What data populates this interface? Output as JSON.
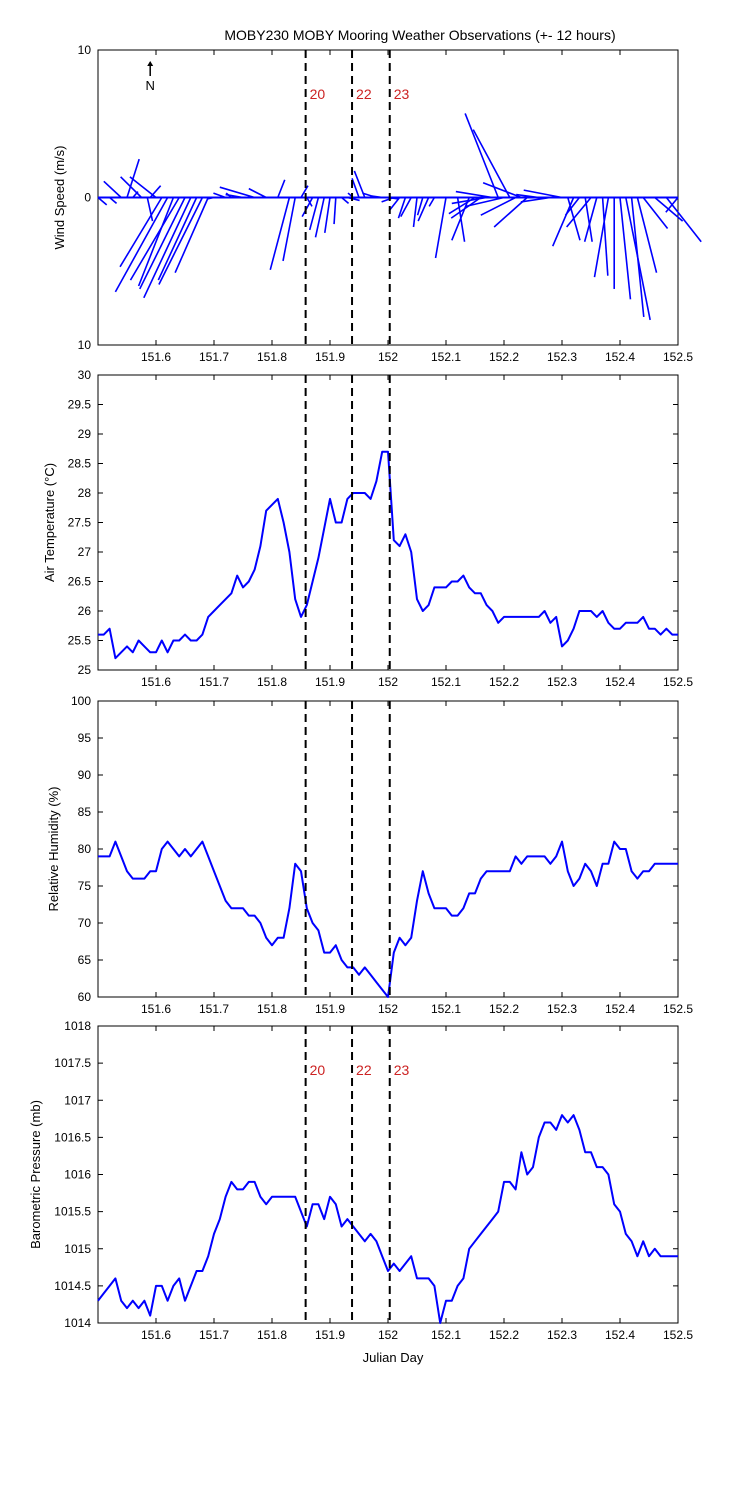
{
  "title": "MOBY230 MOBY Mooring Weather Observations (+- 12 hours)",
  "colors": {
    "series": "#0000ff",
    "marker_label": "#cc2222",
    "axis": "#000000",
    "background": "#ffffff"
  },
  "north_label": "N",
  "x_ticks": [
    151.6,
    151.7,
    151.8,
    151.9,
    152,
    152.1,
    152.2,
    152.3,
    152.4,
    152.5
  ],
  "x_tick_labels": [
    "151.6",
    "151.7",
    "151.8",
    "151.9",
    "152",
    "152.1",
    "152.2",
    "152.3",
    "152.4",
    "152.5"
  ],
  "xlabel": "Julian Day",
  "markers": [
    {
      "x": 151.858,
      "label": "20"
    },
    {
      "x": 151.938,
      "label": "22"
    },
    {
      "x": 152.003,
      "label": "23"
    }
  ],
  "chart_data": [
    {
      "type": "vector",
      "name": "wind",
      "ylabel": "Wind Speed (m/s)",
      "xlim": [
        151.5,
        152.5
      ],
      "ylim": [
        -10,
        10
      ],
      "ytick_values": [
        10,
        0,
        -10
      ],
      "ytick_labels": [
        "10",
        "0",
        "10"
      ],
      "show_marker_labels": true,
      "x": [
        151.5,
        151.52,
        151.54,
        151.55,
        151.56,
        151.575,
        151.585,
        151.59,
        151.6,
        151.61,
        151.62,
        151.63,
        151.64,
        151.65,
        151.66,
        151.67,
        151.68,
        151.69,
        151.7,
        151.72,
        151.73,
        151.75,
        151.77,
        151.79,
        151.81,
        151.83,
        151.84,
        151.85,
        151.86,
        151.87,
        151.88,
        151.89,
        151.9,
        151.91,
        151.92,
        151.93,
        151.94,
        151.95,
        151.96,
        151.98,
        151.99,
        152.0,
        152.01,
        152.02,
        152.03,
        152.04,
        152.05,
        152.06,
        152.07,
        152.08,
        152.1,
        152.12,
        152.14,
        152.15,
        152.16,
        152.17,
        152.18,
        152.19,
        152.2,
        152.21,
        152.22,
        152.23,
        152.24,
        152.26,
        152.28,
        152.3,
        152.31,
        152.32,
        152.33,
        152.34,
        152.35,
        152.36,
        152.37,
        152.38,
        152.39,
        152.4,
        152.41,
        152.42,
        152.43,
        152.44,
        152.46,
        152.48,
        152.5
      ],
      "u": [
        0.5,
        0.4,
        -1.0,
        0.7,
        0.3,
        -1.2,
        0.3,
        0.6,
        -1.5,
        -2.4,
        -3.0,
        -2.0,
        -2.8,
        -2.6,
        -2.7,
        -2.2,
        -2.5,
        -1.9,
        -0.4,
        -0.7,
        -0.3,
        -1.0,
        -2.0,
        -1.0,
        0.4,
        -1.1,
        -0.7,
        0.4,
        0.3,
        -0.6,
        -0.5,
        -0.5,
        -0.3,
        -0.1,
        0.4,
        0.7,
        -0.3,
        -0.4,
        -0.6,
        -0.8,
        -0.6,
        0.6,
        -0.7,
        -0.6,
        -0.4,
        -0.6,
        -0.2,
        -0.3,
        -0.6,
        -0.3,
        -0.6,
        0.4,
        -1.0,
        -1.5,
        -1.7,
        -2.0,
        -2.1,
        -1.9,
        -2.2,
        -2.1,
        -2.0,
        -2.2,
        -1.9,
        -1.3,
        -1.7,
        -2.2,
        0.7,
        -1.2,
        -0.8,
        0.4,
        -1.4,
        -0.7,
        0.3,
        -0.8,
        0.0,
        0.6,
        1.4,
        0.7,
        1.1,
        1.4,
        1.6,
        2.0,
        -0.7
      ],
      "v": [
        -0.5,
        -0.4,
        1.1,
        2.6,
        0.4,
        1.4,
        -1.6,
        0.8,
        1.4,
        -4.7,
        -6.4,
        -6.0,
        -5.6,
        -6.2,
        -6.8,
        -5.6,
        -5.9,
        -5.1,
        -0.1,
        0.3,
        0.3,
        0.2,
        0.7,
        0.6,
        1.2,
        -4.9,
        -4.3,
        0.8,
        -0.6,
        -1.3,
        -2.2,
        -2.7,
        -2.4,
        -1.8,
        -0.4,
        -0.2,
        0.3,
        1.3,
        1.8,
        0.3,
        0.1,
        -0.1,
        -0.3,
        -0.9,
        -1.4,
        -1.3,
        -2.0,
        -1.2,
        -1.6,
        -0.6,
        -4.1,
        -3.0,
        -2.9,
        -1.1,
        -1.4,
        -0.4,
        0.4,
        5.7,
        -0.6,
        4.6,
        -1.2,
        1.0,
        -2.0,
        0.2,
        -0.3,
        0.5,
        -2.9,
        -3.3,
        -1.2,
        -3.0,
        -2.0,
        -3.0,
        -5.3,
        -5.4,
        -6.2,
        -6.9,
        -8.3,
        -8.1,
        -5.1,
        -2.1,
        -1.6,
        -3.0,
        -1.0
      ]
    },
    {
      "type": "line",
      "name": "air_temperature",
      "ylabel": "Air Temperature (°C)",
      "xlim": [
        151.5,
        152.5
      ],
      "ylim": [
        25,
        30
      ],
      "ytick_values": [
        25,
        25.5,
        26,
        26.5,
        27,
        27.5,
        28,
        28.5,
        29,
        29.5,
        30
      ],
      "ytick_labels": [
        "25",
        "25.5",
        "26",
        "26.5",
        "27",
        "27.5",
        "28",
        "28.5",
        "29",
        "29.5",
        "30"
      ],
      "show_marker_labels": false,
      "x": [
        151.5,
        151.51,
        151.52,
        151.53,
        151.54,
        151.55,
        151.56,
        151.57,
        151.58,
        151.59,
        151.6,
        151.61,
        151.62,
        151.63,
        151.64,
        151.65,
        151.66,
        151.67,
        151.68,
        151.69,
        151.7,
        151.71,
        151.72,
        151.73,
        151.74,
        151.75,
        151.76,
        151.77,
        151.78,
        151.79,
        151.8,
        151.81,
        151.82,
        151.83,
        151.84,
        151.85,
        151.86,
        151.87,
        151.88,
        151.89,
        151.9,
        151.91,
        151.92,
        151.93,
        151.94,
        151.95,
        151.96,
        151.97,
        151.98,
        151.99,
        152.0,
        152.01,
        152.02,
        152.03,
        152.04,
        152.05,
        152.06,
        152.07,
        152.08,
        152.09,
        152.1,
        152.11,
        152.12,
        152.13,
        152.14,
        152.15,
        152.16,
        152.17,
        152.18,
        152.19,
        152.2,
        152.21,
        152.22,
        152.23,
        152.24,
        152.25,
        152.26,
        152.27,
        152.28,
        152.29,
        152.3,
        152.31,
        152.32,
        152.33,
        152.34,
        152.35,
        152.36,
        152.37,
        152.38,
        152.39,
        152.4,
        152.41,
        152.42,
        152.43,
        152.44,
        152.45,
        152.46,
        152.47,
        152.48,
        152.49,
        152.5
      ],
      "y": [
        25.6,
        25.6,
        25.7,
        25.2,
        25.3,
        25.4,
        25.3,
        25.5,
        25.4,
        25.3,
        25.3,
        25.5,
        25.3,
        25.5,
        25.5,
        25.6,
        25.5,
        25.5,
        25.6,
        25.9,
        26.0,
        26.1,
        26.2,
        26.3,
        26.6,
        26.4,
        26.5,
        26.7,
        27.1,
        27.7,
        27.8,
        27.9,
        27.5,
        27.0,
        26.2,
        25.9,
        26.1,
        26.5,
        26.9,
        27.4,
        27.9,
        27.5,
        27.5,
        27.9,
        28.0,
        28.0,
        28.0,
        27.9,
        28.2,
        28.7,
        28.7,
        27.2,
        27.1,
        27.3,
        27.0,
        26.2,
        26.0,
        26.1,
        26.4,
        26.4,
        26.4,
        26.5,
        26.5,
        26.6,
        26.4,
        26.3,
        26.3,
        26.1,
        26.0,
        25.8,
        25.9,
        25.9,
        25.9,
        25.9,
        25.9,
        25.9,
        25.9,
        26.0,
        25.8,
        25.9,
        25.4,
        25.5,
        25.7,
        26.0,
        26.0,
        26.0,
        25.9,
        26.0,
        25.8,
        25.7,
        25.7,
        25.8,
        25.8,
        25.8,
        25.9,
        25.7,
        25.7,
        25.6,
        25.7,
        25.6,
        25.6
      ]
    },
    {
      "type": "line",
      "name": "relative_humidity",
      "ylabel": "Relative Humidity (%)",
      "xlim": [
        151.5,
        152.5
      ],
      "ylim": [
        60,
        100
      ],
      "ytick_values": [
        60,
        65,
        70,
        75,
        80,
        85,
        90,
        95,
        100
      ],
      "ytick_labels": [
        "60",
        "65",
        "70",
        "75",
        "80",
        "85",
        "90",
        "95",
        "100"
      ],
      "show_marker_labels": false,
      "x": [
        151.5,
        151.51,
        151.52,
        151.53,
        151.54,
        151.55,
        151.56,
        151.57,
        151.58,
        151.59,
        151.6,
        151.61,
        151.62,
        151.63,
        151.64,
        151.65,
        151.66,
        151.67,
        151.68,
        151.69,
        151.7,
        151.71,
        151.72,
        151.73,
        151.74,
        151.75,
        151.76,
        151.77,
        151.78,
        151.79,
        151.8,
        151.81,
        151.82,
        151.83,
        151.84,
        151.85,
        151.86,
        151.87,
        151.88,
        151.89,
        151.9,
        151.91,
        151.92,
        151.93,
        151.94,
        151.95,
        151.96,
        151.97,
        151.98,
        151.99,
        152.0,
        152.01,
        152.02,
        152.03,
        152.04,
        152.05,
        152.06,
        152.07,
        152.08,
        152.09,
        152.1,
        152.11,
        152.12,
        152.13,
        152.14,
        152.15,
        152.16,
        152.17,
        152.18,
        152.19,
        152.2,
        152.21,
        152.22,
        152.23,
        152.24,
        152.25,
        152.26,
        152.27,
        152.28,
        152.29,
        152.3,
        152.31,
        152.32,
        152.33,
        152.34,
        152.35,
        152.36,
        152.37,
        152.38,
        152.39,
        152.4,
        152.41,
        152.42,
        152.43,
        152.44,
        152.45,
        152.46,
        152.47,
        152.48,
        152.49,
        152.5
      ],
      "y": [
        79,
        79,
        79,
        81,
        79,
        77,
        76,
        76,
        76,
        77,
        77,
        80,
        81,
        80,
        79,
        80,
        79,
        80,
        81,
        79,
        77,
        75,
        73,
        72,
        72,
        72,
        71,
        71,
        70,
        68,
        67,
        68,
        68,
        72,
        78,
        77,
        72,
        70,
        69,
        66,
        66,
        67,
        65,
        64,
        64,
        63,
        64,
        63,
        62,
        61,
        60,
        66,
        68,
        67,
        68,
        73,
        77,
        74,
        72,
        72,
        72,
        71,
        71,
        72,
        74,
        74,
        76,
        77,
        77,
        77,
        77,
        77,
        79,
        78,
        79,
        79,
        79,
        79,
        78,
        79,
        81,
        77,
        75,
        76,
        78,
        77,
        75,
        78,
        78,
        81,
        80,
        80,
        77,
        76,
        77,
        77,
        78,
        78,
        78,
        78,
        78
      ]
    },
    {
      "type": "line",
      "name": "barometric_pressure",
      "ylabel": "Barometric Pressure (mb)",
      "xlim": [
        151.5,
        152.5
      ],
      "ylim": [
        1014,
        1018
      ],
      "ytick_values": [
        1014,
        1014.5,
        1015,
        1015.5,
        1016,
        1016.5,
        1017,
        1017.5,
        1018
      ],
      "ytick_labels": [
        "1014",
        "1014.5",
        "1015",
        "1015.5",
        "1016",
        "1016.5",
        "1017",
        "1017.5",
        "1018"
      ],
      "show_marker_labels": true,
      "x": [
        151.5,
        151.51,
        151.52,
        151.53,
        151.54,
        151.55,
        151.56,
        151.57,
        151.58,
        151.59,
        151.6,
        151.61,
        151.62,
        151.63,
        151.64,
        151.65,
        151.66,
        151.67,
        151.68,
        151.69,
        151.7,
        151.71,
        151.72,
        151.73,
        151.74,
        151.75,
        151.76,
        151.77,
        151.78,
        151.79,
        151.8,
        151.81,
        151.82,
        151.83,
        151.84,
        151.85,
        151.86,
        151.87,
        151.88,
        151.89,
        151.9,
        151.91,
        151.92,
        151.93,
        151.94,
        151.95,
        151.96,
        151.97,
        151.98,
        151.99,
        152.0,
        152.01,
        152.02,
        152.03,
        152.04,
        152.05,
        152.06,
        152.07,
        152.08,
        152.09,
        152.1,
        152.11,
        152.12,
        152.13,
        152.14,
        152.15,
        152.16,
        152.17,
        152.18,
        152.19,
        152.2,
        152.21,
        152.22,
        152.23,
        152.24,
        152.25,
        152.26,
        152.27,
        152.28,
        152.29,
        152.3,
        152.31,
        152.32,
        152.33,
        152.34,
        152.35,
        152.36,
        152.37,
        152.38,
        152.39,
        152.4,
        152.41,
        152.42,
        152.43,
        152.44,
        152.45,
        152.46,
        152.47,
        152.48,
        152.49,
        152.5
      ],
      "y": [
        1014.3,
        1014.4,
        1014.5,
        1014.6,
        1014.3,
        1014.2,
        1014.3,
        1014.2,
        1014.3,
        1014.1,
        1014.5,
        1014.5,
        1014.3,
        1014.5,
        1014.6,
        1014.3,
        1014.5,
        1014.7,
        1014.7,
        1014.9,
        1015.2,
        1015.4,
        1015.7,
        1015.9,
        1015.8,
        1015.8,
        1015.9,
        1015.9,
        1015.7,
        1015.6,
        1015.7,
        1015.7,
        1015.7,
        1015.7,
        1015.7,
        1015.5,
        1015.3,
        1015.6,
        1015.6,
        1015.4,
        1015.7,
        1015.6,
        1015.3,
        1015.4,
        1015.3,
        1015.2,
        1015.1,
        1015.2,
        1015.1,
        1014.9,
        1014.7,
        1014.8,
        1014.7,
        1014.8,
        1014.9,
        1014.6,
        1014.6,
        1014.6,
        1014.5,
        1014.0,
        1014.3,
        1014.3,
        1014.5,
        1014.6,
        1015.0,
        1015.1,
        1015.2,
        1015.3,
        1015.4,
        1015.5,
        1015.9,
        1015.9,
        1015.8,
        1016.3,
        1016.0,
        1016.1,
        1016.5,
        1016.7,
        1016.7,
        1016.6,
        1016.8,
        1016.7,
        1016.8,
        1016.6,
        1016.3,
        1016.3,
        1016.1,
        1016.1,
        1016.0,
        1015.6,
        1015.5,
        1015.2,
        1015.1,
        1014.9,
        1015.1,
        1014.9,
        1015.0,
        1014.9,
        1014.9,
        1014.9,
        1014.9
      ]
    }
  ]
}
